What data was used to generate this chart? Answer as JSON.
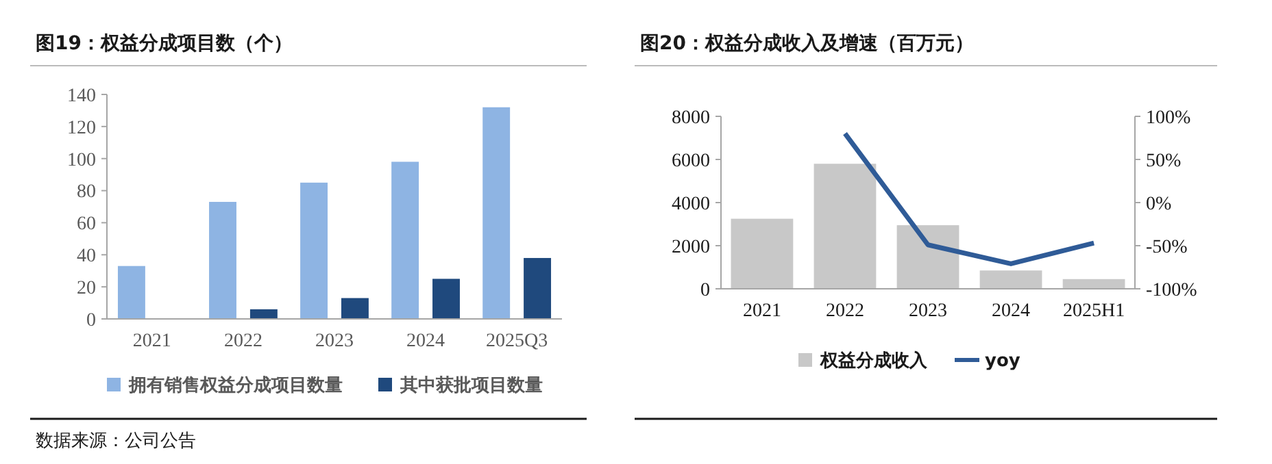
{
  "chart_data": [
    {
      "type": "bar",
      "title": "图19：权益分成项目数（个）",
      "categories": [
        "2021",
        "2022",
        "2023",
        "2024",
        "2025Q3"
      ],
      "series": [
        {
          "name": "拥有销售权益分成项目数量",
          "color": "#8eb4e3",
          "values": [
            33,
            73,
            85,
            98,
            132
          ]
        },
        {
          "name": "其中获批项目数量",
          "color": "#1f497d",
          "values": [
            null,
            6,
            13,
            25,
            38
          ]
        }
      ],
      "ylim": [
        0,
        140
      ],
      "yticks": [
        0,
        20,
        40,
        60,
        80,
        100,
        120,
        140
      ],
      "grid": false,
      "legend": "bottom",
      "annotations": [
        "数据来源：公司公告"
      ]
    },
    {
      "type": "bar",
      "title": "图20：权益分成收入及增速（百万元）",
      "categories": [
        "2021",
        "2022",
        "2023",
        "2024",
        "2025H1"
      ],
      "series": [
        {
          "name": "权益分成收入",
          "color": "#c8c8c8",
          "values": [
            3250,
            5800,
            2950,
            850,
            450
          ]
        },
        {
          "name": "yoy",
          "type": "line",
          "axis": "y2",
          "color": "#2f5b97",
          "values": [
            null,
            80,
            -49,
            -71,
            -47
          ]
        }
      ],
      "ylim": [
        0,
        8000
      ],
      "yticks": [
        0,
        2000,
        4000,
        6000,
        8000
      ],
      "y2lim": [
        -100,
        100
      ],
      "y2ticks": [
        {
          "value": -100,
          "label": "-100%"
        },
        {
          "value": -50,
          "label": "-50%"
        },
        {
          "value": 0,
          "label": "0%"
        },
        {
          "value": 50,
          "label": "50%"
        },
        {
          "value": 100,
          "label": "100%"
        }
      ],
      "grid": false,
      "legend": "bottom",
      "marker": "none",
      "line_style": "solid"
    }
  ]
}
